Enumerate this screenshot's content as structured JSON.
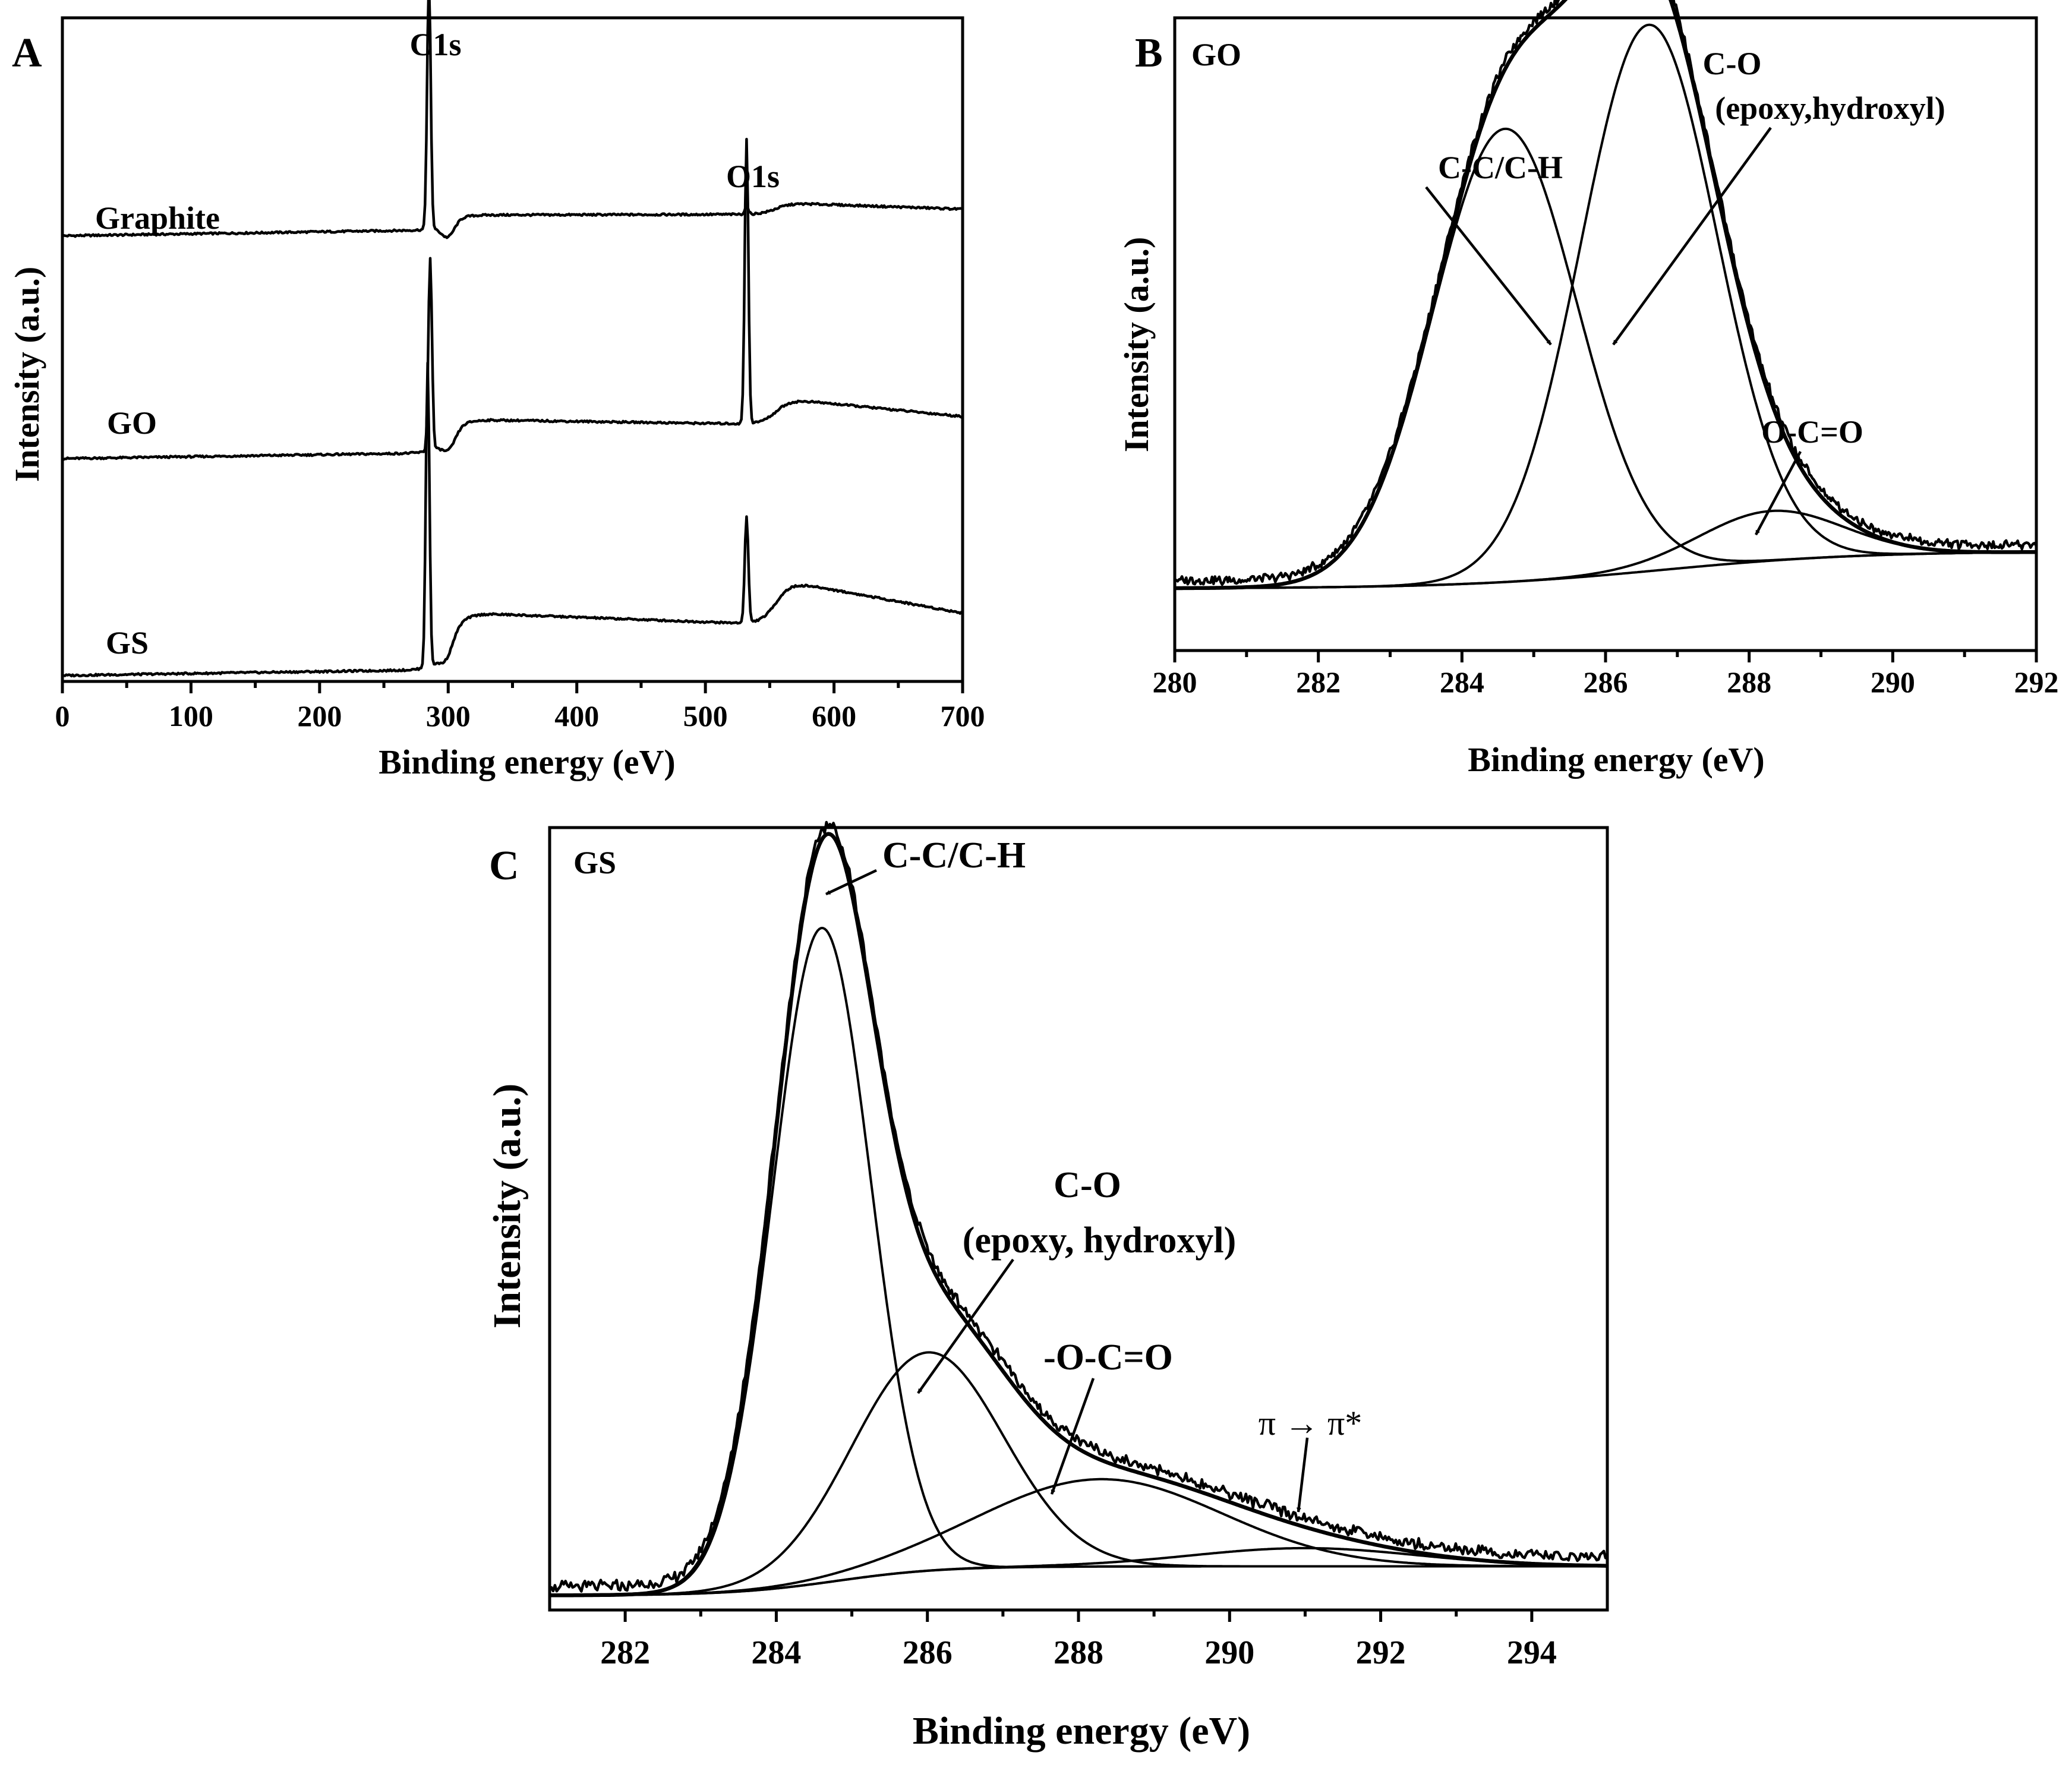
{
  "chart_data": [
    {
      "panel": "A",
      "type": "line",
      "title": "",
      "xlabel": "Binding energy (eV)",
      "ylabel": "Intensity (a.u.)",
      "xlim": [
        0,
        700
      ],
      "xticks": [
        0,
        100,
        200,
        300,
        400,
        500,
        600,
        700
      ],
      "yticks": "none",
      "peak_labels": [
        {
          "text": "C1s",
          "x": 284
        },
        {
          "text": "O1s",
          "x": 532
        }
      ],
      "series": [
        {
          "name": "Graphite",
          "base": 0.03,
          "peaks": [
            {
              "x": 285,
              "h": 0.53
            },
            {
              "x": 532,
              "h": 0.015
            }
          ],
          "bump": 0.03
        },
        {
          "name": "GO",
          "base": 0.03,
          "peaks": [
            {
              "x": 286,
              "h": 0.42
            },
            {
              "x": 532,
              "h": 0.62
            }
          ],
          "bump": 0.07
        },
        {
          "name": "GS",
          "base": 0.03,
          "peaks": [
            {
              "x": 284,
              "h": 0.66
            },
            {
              "x": 532,
              "h": 0.23
            }
          ],
          "bump": 0.12
        }
      ]
    },
    {
      "panel": "B",
      "type": "line",
      "sample_label": "GO",
      "xlabel": "Binding energy (eV)",
      "ylabel": "Intensity (a.u.)",
      "xlim": [
        280,
        292
      ],
      "xticks": [
        280,
        282,
        284,
        286,
        288,
        290,
        292
      ],
      "yticks": "none",
      "background": {
        "start": 0.1,
        "end": 0.16,
        "center": 286.8,
        "width": 1.4
      },
      "components": [
        {
          "name": "C-C/C-H",
          "center": 284.6,
          "amplitude": 0.73,
          "width": 1.0
        },
        {
          "name": "C-O (epoxy,hydroxyl)",
          "center": 286.6,
          "amplitude": 0.88,
          "width": 0.95
        },
        {
          "name": "O-C=O",
          "center": 288.3,
          "amplitude": 0.08,
          "width": 1.0
        }
      ],
      "annotations": [
        {
          "text": "C-C/C-H",
          "line2": ""
        },
        {
          "text": "C-O",
          "line2": "(epoxy,hydroxyl)"
        },
        {
          "text": "O-C=O",
          "line2": ""
        }
      ]
    },
    {
      "panel": "C",
      "type": "line",
      "sample_label": "GS",
      "xlabel": "Binding energy (eV)",
      "ylabel": "Intensity (a.u.)",
      "xlim": [
        281,
        295
      ],
      "xticks": [
        282,
        284,
        286,
        288,
        290,
        292,
        294
      ],
      "yticks": "none",
      "background": {
        "start": 0.02,
        "end": 0.06,
        "center": 284.8,
        "width": 0.7
      },
      "components": [
        {
          "name": "C-C/C-H",
          "center": 284.6,
          "amplitude": 0.9,
          "width": 0.65
        },
        {
          "name": "C-O (epoxy, hydroxyl)",
          "center": 286.0,
          "amplitude": 0.3,
          "width": 1.0
        },
        {
          "name": "-O-C=O",
          "center": 288.3,
          "amplitude": 0.12,
          "width": 1.6
        },
        {
          "name": "π → π*",
          "center": 291.0,
          "amplitude": 0.025,
          "width": 1.5
        }
      ],
      "annotations": [
        {
          "text": "C-C/C-H",
          "line2": ""
        },
        {
          "text": "C-O",
          "line2": "(epoxy, hydroxyl)"
        },
        {
          "text": "-O-C=O",
          "line2": ""
        },
        {
          "text": "π  → π*",
          "line2": ""
        }
      ]
    }
  ]
}
